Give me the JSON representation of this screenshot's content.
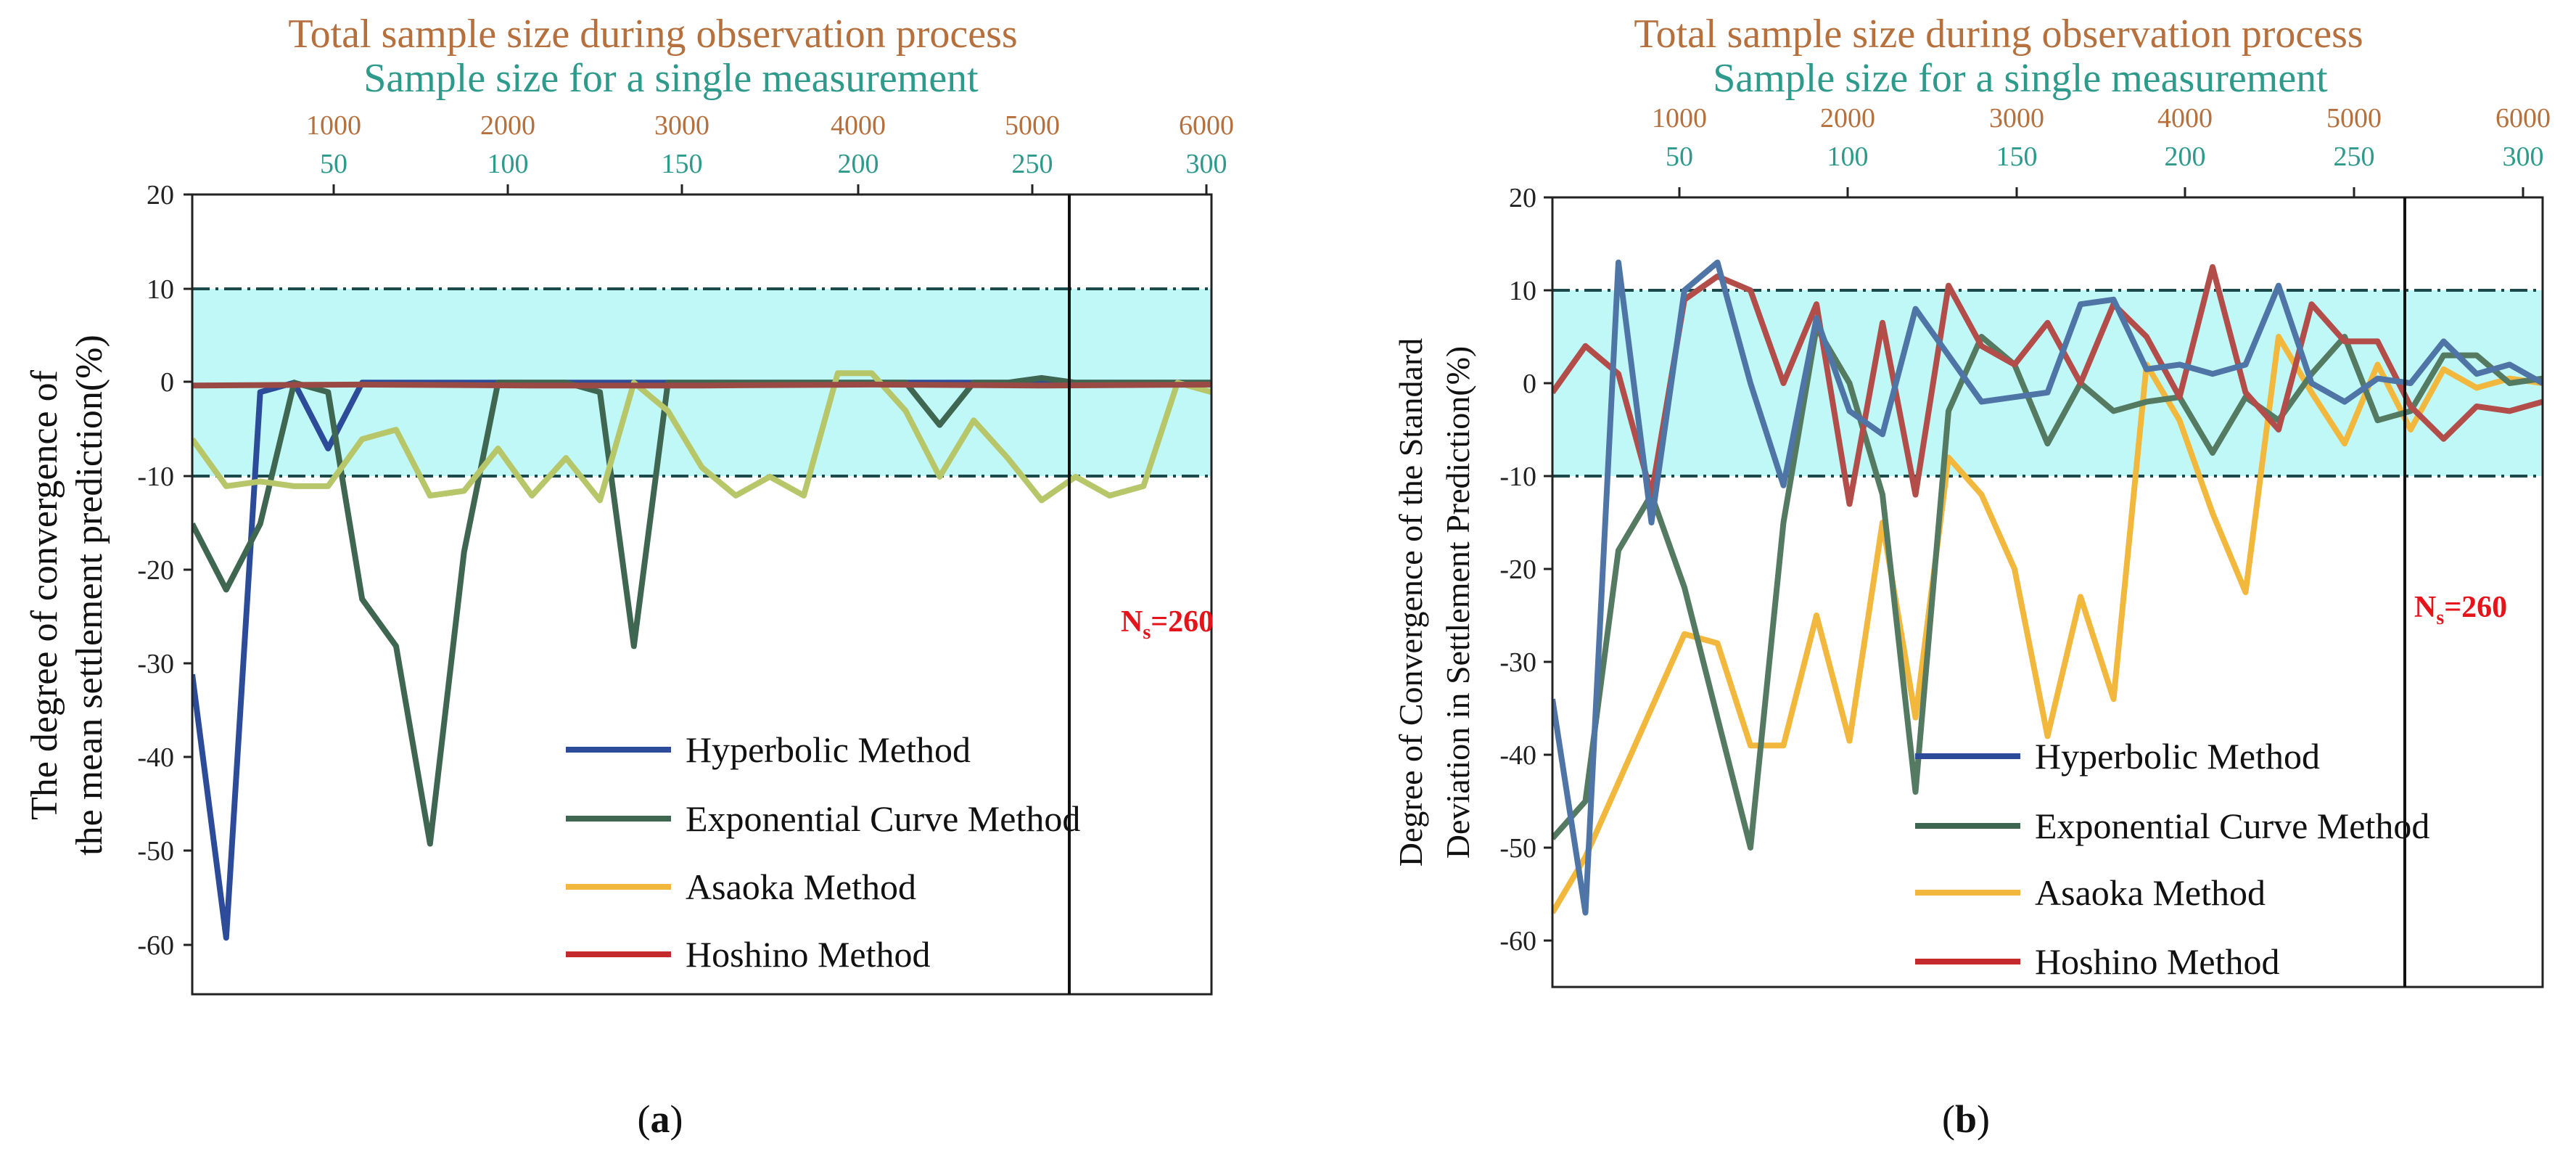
{
  "colors": {
    "top_axis_total": "#b5703d",
    "top_axis_single": "#2e9a8c",
    "band_fill": "#bff8f6",
    "ns_label": "#e5141b",
    "hyperbolic": "#2c4c9a",
    "exponential": "#3f6651",
    "asaoka": "#f2b83d",
    "hoshino": "#c42a2c",
    "asaoka_a": "#b8c66a",
    "hoshino_a": "#9a4a44",
    "hyperbolic_b": "#4f74a6",
    "exponential_b": "#557a62",
    "hoshino_b": "#b24d4a"
  },
  "chart_data": [
    {
      "panel": "a",
      "caption_open": "(",
      "caption_letter": "a",
      "caption_close": ")",
      "type": "line",
      "top_title": "Total sample size during observation process",
      "top_subtitle": "Sample size for a single measurement",
      "total_ticks": [
        "1000",
        "2000",
        "3000",
        "4000",
        "5000",
        "6000"
      ],
      "single_ticks": [
        "50",
        "100",
        "150",
        "200",
        "250",
        "300"
      ],
      "ylabel_line1": "The degree of convergence of",
      "ylabel_line2": "the mean settlement prediction(%)",
      "y_ticks": [
        "20",
        "10",
        "0",
        "-10",
        "-20",
        "-30",
        "-40",
        "-50",
        "-60"
      ],
      "ylim": [
        -65,
        20
      ],
      "xlim": [
        0,
        300
      ],
      "band": [
        -10,
        10
      ],
      "ns_value": 260,
      "ns_prefix": "N",
      "ns_sub": "s",
      "ns_suffix": "=260",
      "legend": [
        "Hyperbolic Method",
        "Exponential Curve Method",
        "Asaoka Method",
        "Hoshino Method"
      ],
      "series": [
        {
          "name": "Hyperbolic Method",
          "color": "#2c4c9a",
          "x": [
            0,
            10,
            20,
            30,
            40,
            50,
            70,
            100,
            150,
            200,
            250,
            300
          ],
          "y": [
            -31,
            -59,
            -1,
            0,
            -7,
            0,
            0,
            0,
            0,
            0,
            0,
            0
          ]
        },
        {
          "name": "Exponential Curve Method",
          "color": "#3f6651",
          "x": [
            0,
            10,
            20,
            30,
            40,
            50,
            60,
            70,
            80,
            90,
            100,
            110,
            120,
            130,
            140,
            150,
            160,
            170,
            180,
            190,
            200,
            210,
            220,
            230,
            240,
            250,
            260,
            270,
            280,
            290,
            300
          ],
          "y": [
            -15,
            -22,
            -15,
            0,
            -1,
            -23,
            -28,
            -49,
            -18,
            0,
            0,
            0,
            -1,
            -28,
            0,
            0,
            0,
            0,
            0,
            0,
            0,
            0,
            -4.5,
            0,
            0,
            0.5,
            0,
            0,
            0,
            0,
            0
          ]
        },
        {
          "name": "Asaoka Method",
          "color": "#b8c66a",
          "x": [
            0,
            10,
            20,
            30,
            40,
            50,
            60,
            70,
            80,
            90,
            100,
            110,
            120,
            130,
            140,
            150,
            160,
            170,
            180,
            190,
            200,
            210,
            220,
            230,
            240,
            250,
            260,
            270,
            280,
            290,
            300
          ],
          "y": [
            -6,
            -11,
            -10.5,
            -11,
            -11,
            -6,
            -5,
            -12,
            -11.5,
            -7,
            -12,
            -8,
            -12.5,
            0,
            -3,
            -9,
            -12,
            -10,
            -12,
            1,
            1,
            -3,
            -10,
            -4,
            -8,
            -12.5,
            -10,
            -12,
            -11,
            0,
            -1
          ]
        },
        {
          "name": "Hoshino Method",
          "color": "#9a4a44",
          "x": [
            0,
            50,
            100,
            150,
            200,
            250,
            300
          ],
          "y": [
            -0.3,
            -0.2,
            -0.3,
            -0.3,
            -0.2,
            -0.3,
            -0.2
          ]
        }
      ]
    },
    {
      "panel": "b",
      "caption_open": "(",
      "caption_letter": "b",
      "caption_close": ")",
      "type": "line",
      "top_title": "Total sample size during observation process",
      "top_subtitle": "Sample size for a single measurement",
      "total_ticks": [
        "1000",
        "2000",
        "3000",
        "4000",
        "5000",
        "6000"
      ],
      "single_ticks": [
        "50",
        "100",
        "150",
        "200",
        "250",
        "300"
      ],
      "ylabel_line1": "Degree of Convergence of the Standard",
      "ylabel_line2": "Deviation in Settlement Prediction(%)",
      "y_ticks": [
        "20",
        "10",
        "0",
        "-10",
        "-20",
        "-30",
        "-40",
        "-50",
        "-60"
      ],
      "ylim": [
        -65,
        20
      ],
      "xlim": [
        0,
        300
      ],
      "band": [
        -10,
        10
      ],
      "ns_value": 260,
      "ns_prefix": "N",
      "ns_sub": "s",
      "ns_suffix": "=260",
      "legend": [
        "Hyperbolic Method",
        "Exponential Curve Method",
        "Asaoka Method",
        "Hoshino Method"
      ],
      "series": [
        {
          "name": "Hyperbolic Method",
          "color": "#4f74a6",
          "x": [
            0,
            10,
            20,
            30,
            40,
            50,
            60,
            70,
            80,
            90,
            100,
            110,
            120,
            130,
            140,
            150,
            160,
            170,
            180,
            190,
            200,
            210,
            220,
            230,
            240,
            250,
            260,
            270,
            280,
            290,
            300
          ],
          "y": [
            -34,
            -57,
            13,
            -15,
            10,
            13,
            0,
            -11,
            7,
            -3,
            -5.5,
            8,
            3,
            -2,
            -1.5,
            -1,
            8.5,
            9,
            1.5,
            2,
            1,
            2,
            10.5,
            0,
            -2,
            0.5,
            0,
            4.5,
            1,
            2,
            0
          ]
        },
        {
          "name": "Exponential Curve Method",
          "color": "#557a62",
          "x": [
            0,
            10,
            20,
            30,
            40,
            50,
            60,
            70,
            80,
            90,
            100,
            110,
            120,
            130,
            140,
            150,
            160,
            170,
            180,
            190,
            200,
            210,
            220,
            230,
            240,
            250,
            260,
            270,
            280,
            290,
            300
          ],
          "y": [
            -49,
            -45,
            -18,
            -12,
            -22,
            -36,
            -50,
            -15,
            6,
            0,
            -12,
            -44,
            -3,
            5,
            2,
            -6.5,
            0,
            -3,
            -2,
            -1.5,
            -7.5,
            -1.5,
            -4,
            1,
            5,
            -4,
            -3,
            3,
            3,
            0,
            0.5
          ]
        },
        {
          "name": "Asaoka Method",
          "color": "#f2b83d",
          "x": [
            0,
            10,
            20,
            30,
            40,
            50,
            60,
            70,
            80,
            90,
            100,
            110,
            120,
            130,
            140,
            150,
            160,
            170,
            180,
            190,
            200,
            210,
            220,
            230,
            240,
            250,
            260,
            270,
            280,
            290,
            300
          ],
          "y": [
            -57,
            -51,
            -43,
            -35,
            -27,
            -28,
            -39,
            -39,
            -25,
            -38.5,
            -15,
            -36,
            -8,
            -12,
            -20,
            -38,
            -23,
            -34,
            2,
            -4,
            -14,
            -22.5,
            5,
            -1,
            -6.5,
            2,
            -5,
            1.5,
            -0.5,
            0.5,
            0
          ]
        },
        {
          "name": "Hoshino Method",
          "color": "#b24d4a",
          "x": [
            0,
            10,
            20,
            30,
            40,
            50,
            60,
            70,
            80,
            90,
            100,
            110,
            120,
            130,
            140,
            150,
            160,
            170,
            180,
            190,
            200,
            210,
            220,
            230,
            240,
            250,
            260,
            270,
            280,
            290,
            300
          ],
          "y": [
            -1,
            4,
            1,
            -12,
            9,
            11.5,
            10,
            0,
            8.5,
            -13,
            6.5,
            -12,
            10.5,
            4,
            2,
            6.5,
            0,
            8.5,
            5,
            -1.5,
            12.5,
            -1,
            -5,
            8.5,
            4.5,
            4.5,
            -2.5,
            -6,
            -2.5,
            -3,
            -2
          ]
        }
      ]
    }
  ]
}
